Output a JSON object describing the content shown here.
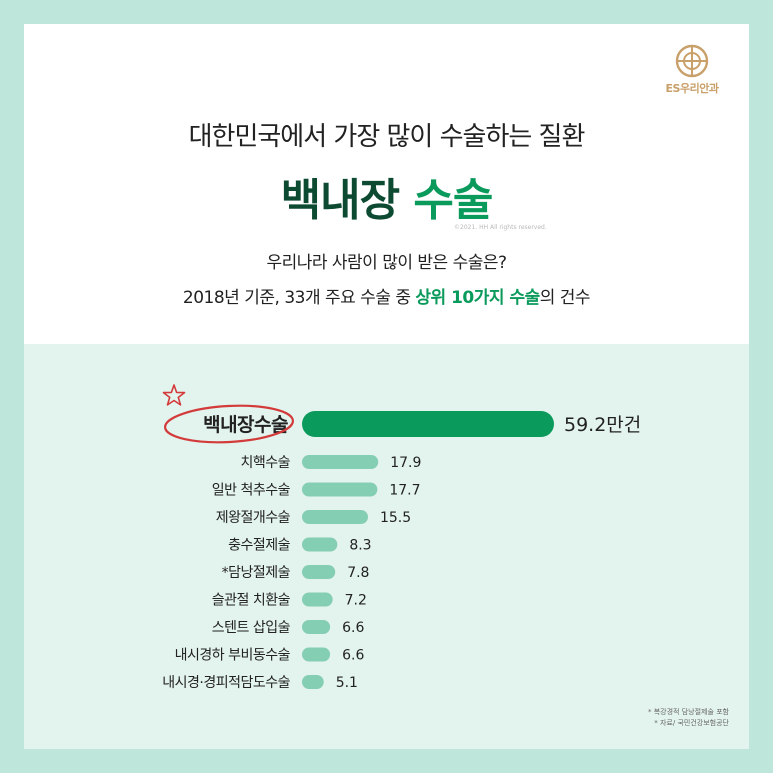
{
  "brand": {
    "logo_text": "ES우리안과",
    "copyright": "©2021. HH All rights reserved."
  },
  "header": {
    "title_line1": "대한민국에서 가장 많이 수술하는 질환",
    "title_main": "백내장",
    "title_accent": "수술",
    "subtitle_line1": "우리나라 사람이 많이 받은 수술은?",
    "subtitle_line2_pre": "2018년 기준, 33개 주요 수술 중 ",
    "subtitle_line2_hl": "상위 10가지 수술",
    "subtitle_line2_post": "의 건수"
  },
  "colors": {
    "top_bar": "#0a9a5b",
    "bar": "#84ceb3",
    "highlight_circle": "#d33b3b"
  },
  "chart_data": {
    "type": "bar",
    "orientation": "horizontal",
    "categories": [
      "백내장수술",
      "치핵수술",
      "일반 척추수술",
      "제왕절개수술",
      "충수절제술",
      "*담낭절제술",
      "슬관절 치환술",
      "스텐트 삽입술",
      "내시경하 부비동수술",
      "내시경·경피적담도수술"
    ],
    "values": [
      59.2,
      17.9,
      17.7,
      15.5,
      8.3,
      7.8,
      7.2,
      6.6,
      6.6,
      5.1
    ],
    "value_labels": [
      "59.2만건",
      "17.9",
      "17.7",
      "15.5",
      "8.3",
      "7.8",
      "7.2",
      "6.6",
      "6.6",
      "5.1"
    ],
    "highlight_index": 0
  },
  "notes": {
    "line1": "* 복강경적 담낭절제술 포함",
    "line2": "* 자료/ 국민건강보험공단"
  }
}
